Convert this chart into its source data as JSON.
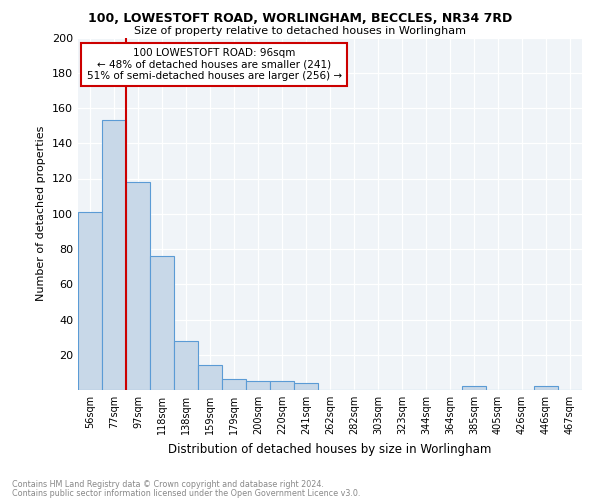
{
  "title1": "100, LOWESTOFT ROAD, WORLINGHAM, BECCLES, NR34 7RD",
  "title2": "Size of property relative to detached houses in Worlingham",
  "xlabel": "Distribution of detached houses by size in Worlingham",
  "ylabel": "Number of detached properties",
  "footer1": "Contains HM Land Registry data © Crown copyright and database right 2024.",
  "footer2": "Contains public sector information licensed under the Open Government Licence v3.0.",
  "bar_labels": [
    "56sqm",
    "77sqm",
    "97sqm",
    "118sqm",
    "138sqm",
    "159sqm",
    "179sqm",
    "200sqm",
    "220sqm",
    "241sqm",
    "262sqm",
    "282sqm",
    "303sqm",
    "323sqm",
    "344sqm",
    "364sqm",
    "385sqm",
    "405sqm",
    "426sqm",
    "446sqm",
    "467sqm"
  ],
  "bar_values": [
    101,
    153,
    118,
    76,
    28,
    14,
    6,
    5,
    5,
    4,
    0,
    0,
    0,
    0,
    0,
    0,
    2,
    0,
    0,
    2,
    0
  ],
  "bar_color": "#c8d8e8",
  "bar_edge_color": "#5b9bd5",
  "grid_color": "#d0d8e8",
  "vline_x_idx": 2,
  "vline_color": "#cc0000",
  "annotation_text": "100 LOWESTOFT ROAD: 96sqm\n← 48% of detached houses are smaller (241)\n51% of semi-detached houses are larger (256) →",
  "annotation_box_color": "#ffffff",
  "annotation_box_edge": "#cc0000",
  "ylim": [
    0,
    200
  ],
  "yticks": [
    0,
    20,
    40,
    60,
    80,
    100,
    120,
    140,
    160,
    180,
    200
  ],
  "bg_color": "#f0f4f8"
}
